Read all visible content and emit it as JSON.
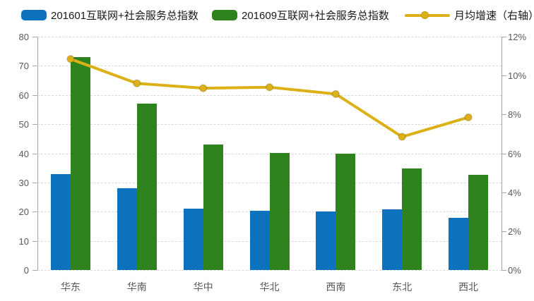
{
  "chart_data": {
    "type": "combo",
    "categories": [
      "华东",
      "华南",
      "华中",
      "华北",
      "西南",
      "东北",
      "西北"
    ],
    "series": [
      {
        "name": "201601互联网+社会服务总指数",
        "type": "bar",
        "axis": "left",
        "color": "#0d72bd",
        "values": [
          32.8,
          28,
          21,
          20.4,
          20,
          20.8,
          18
        ]
      },
      {
        "name": "201609互联网+社会服务总指数",
        "type": "bar",
        "axis": "left",
        "color": "#2f831f",
        "values": [
          73,
          57,
          43,
          40.2,
          40,
          34.8,
          32.7
        ]
      },
      {
        "name": "月均增速（右轴）",
        "type": "line",
        "axis": "right",
        "color": "#dcb118",
        "values": [
          10.85,
          9.6,
          9.35,
          9.4,
          9.05,
          6.85,
          7.85
        ]
      }
    ],
    "left_axis": {
      "min": 0,
      "max": 80,
      "step": 10,
      "tick_labels": [
        "0",
        "10",
        "20",
        "30",
        "40",
        "50",
        "60",
        "70",
        "80"
      ]
    },
    "right_axis": {
      "min": 0,
      "max": 12,
      "step": 2,
      "tick_labels": [
        "0%",
        "2%",
        "4%",
        "6%",
        "8%",
        "10%",
        "12%"
      ]
    },
    "grid": true,
    "legend_position": "top"
  },
  "style": {
    "gridline_color": "#d9d9d9",
    "axis_line_color": "#a6a6a6",
    "tick_text_color": "#595959",
    "legend_text_color": "#1a1a1a",
    "line_marker_radius": 5,
    "line_stroke_width": 4
  }
}
